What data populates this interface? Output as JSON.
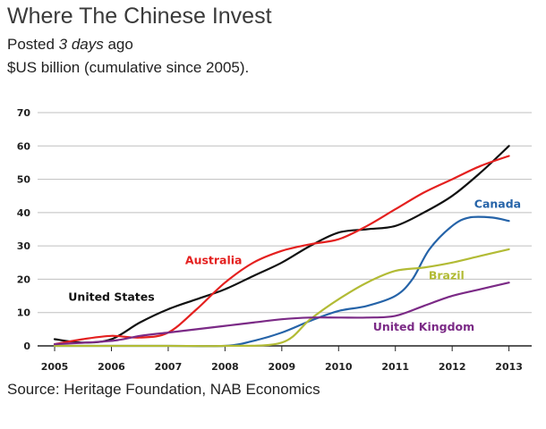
{
  "header": {
    "title": "Where The Chinese Invest",
    "posted_prefix": "Posted ",
    "posted_age": "3 days",
    "posted_suffix": " ago",
    "subtitle": "$US billion (cumulative since 2005)."
  },
  "footer": {
    "source": "Source: Heritage Foundation, NAB Economics"
  },
  "chart_data": {
    "type": "line",
    "title": "Where The Chinese Invest",
    "ylabel": "$US billion (cumulative since 2005)",
    "xlabel": "",
    "xlim": [
      2004.7,
      2013.4
    ],
    "ylim": [
      0,
      70
    ],
    "yticks": [
      0,
      10,
      20,
      30,
      40,
      50,
      60,
      70
    ],
    "xticks": [
      2005,
      2006,
      2007,
      2008,
      2009,
      2010,
      2011,
      2012,
      2013
    ],
    "grid": true,
    "legend": "inline labels",
    "series": [
      {
        "name": "United States",
        "color": "#111111",
        "label_text_color": "#111111",
        "points": [
          [
            2005,
            2
          ],
          [
            2005.5,
            1
          ],
          [
            2006,
            2
          ],
          [
            2006.5,
            7
          ],
          [
            2007,
            11
          ],
          [
            2007.5,
            14
          ],
          [
            2008,
            17
          ],
          [
            2008.5,
            21
          ],
          [
            2009,
            25
          ],
          [
            2009.5,
            30
          ],
          [
            2010,
            34
          ],
          [
            2010.5,
            35
          ],
          [
            2011,
            36
          ],
          [
            2011.5,
            40
          ],
          [
            2012,
            45
          ],
          [
            2012.5,
            52
          ],
          [
            2013,
            60
          ]
        ]
      },
      {
        "name": "Australia",
        "color": "#e4201f",
        "label_text_color": "#e4201f",
        "points": [
          [
            2005,
            0.5
          ],
          [
            2005.5,
            2
          ],
          [
            2006,
            3
          ],
          [
            2006.5,
            2.5
          ],
          [
            2007,
            4
          ],
          [
            2007.5,
            11
          ],
          [
            2008,
            19
          ],
          [
            2008.5,
            25
          ],
          [
            2009,
            28.5
          ],
          [
            2009.5,
            30.5
          ],
          [
            2010,
            32
          ],
          [
            2010.5,
            36
          ],
          [
            2011,
            41
          ],
          [
            2011.5,
            46
          ],
          [
            2012,
            50
          ],
          [
            2012.5,
            54
          ],
          [
            2013,
            57
          ]
        ]
      },
      {
        "name": "Canada",
        "color": "#2563a8",
        "label_text_color": "#2563a8",
        "points": [
          [
            2005,
            0
          ],
          [
            2007,
            0
          ],
          [
            2008,
            0
          ],
          [
            2008.5,
            1.5
          ],
          [
            2009,
            4
          ],
          [
            2009.5,
            7.5
          ],
          [
            2010,
            10.5
          ],
          [
            2010.5,
            12
          ],
          [
            2011,
            15
          ],
          [
            2011.3,
            20
          ],
          [
            2011.6,
            29
          ],
          [
            2012,
            36
          ],
          [
            2012.3,
            38.5
          ],
          [
            2012.7,
            38.5
          ],
          [
            2013,
            37.5
          ]
        ]
      },
      {
        "name": "Brazil",
        "color": "#b2bb35",
        "label_text_color": "#b2bb35",
        "points": [
          [
            2005,
            0
          ],
          [
            2007,
            0
          ],
          [
            2008,
            0
          ],
          [
            2009,
            1
          ],
          [
            2009.5,
            8
          ],
          [
            2010,
            14
          ],
          [
            2010.5,
            19
          ],
          [
            2011,
            22.5
          ],
          [
            2011.5,
            23.5
          ],
          [
            2012,
            25
          ],
          [
            2012.5,
            27
          ],
          [
            2013,
            29
          ]
        ]
      },
      {
        "name": "United Kingdom",
        "color": "#7b2a86",
        "label_text_color": "#7b2a86",
        "points": [
          [
            2005,
            0.5
          ],
          [
            2006,
            1.5
          ],
          [
            2006.5,
            3
          ],
          [
            2007,
            4
          ],
          [
            2007.5,
            5
          ],
          [
            2008,
            6
          ],
          [
            2008.5,
            7
          ],
          [
            2009,
            8
          ],
          [
            2009.5,
            8.5
          ],
          [
            2010,
            8.5
          ],
          [
            2010.5,
            8.5
          ],
          [
            2011,
            9
          ],
          [
            2011.5,
            12
          ],
          [
            2012,
            15
          ],
          [
            2012.5,
            17
          ],
          [
            2013,
            19
          ]
        ]
      }
    ],
    "labels": [
      {
        "text": "United States",
        "series": "United States",
        "x": 2006.0,
        "y": 13.5
      },
      {
        "text": "Australia",
        "series": "Australia",
        "x": 2007.8,
        "y": 24.5
      },
      {
        "text": "Canada",
        "series": "Canada",
        "x": 2012.8,
        "y": 41.5
      },
      {
        "text": "Brazil",
        "series": "Brazil",
        "x": 2011.9,
        "y": 20
      },
      {
        "text": "United Kingdom",
        "series": "United Kingdom",
        "x": 2011.5,
        "y": 4.5
      }
    ]
  }
}
